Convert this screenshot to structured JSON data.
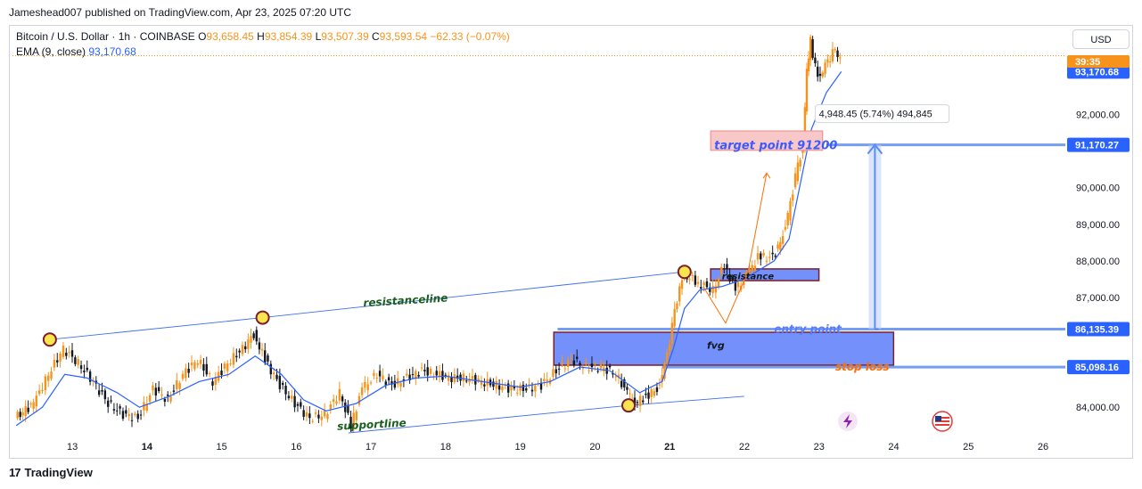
{
  "header": {
    "publisher": "Jameshead007 published on TradingView.com, Apr 23, 2025 07:20 UTC"
  },
  "legend": {
    "symbol": "Bitcoin / U.S. Dollar · 1h · COINBASE",
    "o_label": "O",
    "o": "93,658.45",
    "h_label": "H",
    "h": "93,854.39",
    "l_label": "L",
    "l": "93,507.39",
    "c_label": "C",
    "c": "93,593.54",
    "change": "−62.33 (−0.07%)",
    "ema_label": "EMA (9, close)",
    "ema_value": "93,170.68"
  },
  "currency_button": "USD",
  "footer": {
    "brand": "TradingView",
    "logo": "17"
  },
  "colors": {
    "candle": "#f7931a",
    "candle_alt": "#131722",
    "ema": "#2962ff",
    "price_tag": "#2962ff",
    "last_tag": "#f7931a",
    "box": "#5b7cfa",
    "box_border": "#7b1f2a",
    "target_fill": "#f8c8c8",
    "target_text": "#3d5afe",
    "annotation_orange": "#ff6d00",
    "annotation_green": "#1b5e20"
  },
  "icons": [
    "bolt-icon",
    "us-flag-icon",
    "tradingview-logo-icon"
  ],
  "chart_data": {
    "type": "candlestick",
    "title": "Bitcoin / U.S. Dollar · 1h · COINBASE",
    "x_ticks": [
      "13",
      "14",
      "15",
      "16",
      "17",
      "18",
      "19",
      "20",
      "21",
      "22",
      "23",
      "24",
      "25",
      "26"
    ],
    "y_ticks": [
      {
        "value": 84000,
        "label": "84,000.00"
      },
      {
        "value": 87000,
        "label": "87,000.00"
      },
      {
        "value": 88000,
        "label": "88,000.00"
      },
      {
        "value": 89000,
        "label": "89,000.00"
      },
      {
        "value": 90000,
        "label": "90,000.00"
      },
      {
        "value": 92000,
        "label": "92,000.00"
      }
    ],
    "ylim": [
      83300,
      94300
    ],
    "xlim": [
      12.2,
      26.3
    ],
    "price_tags": [
      {
        "value": 93170.68,
        "label": "93,170.68",
        "kind": "ema"
      },
      {
        "value": 91170.27,
        "label": "91,170.27",
        "kind": "level"
      },
      {
        "value": 86135.39,
        "label": "86,135.39",
        "kind": "level"
      },
      {
        "value": 85098.16,
        "label": "85,098.16",
        "kind": "level"
      }
    ],
    "last_price_countdown": "39:35",
    "price_path": [
      [
        12.25,
        83700
      ],
      [
        12.5,
        84100
      ],
      [
        12.7,
        84900
      ],
      [
        12.9,
        85600
      ],
      [
        13.1,
        85200
      ],
      [
        13.3,
        84700
      ],
      [
        13.5,
        84100
      ],
      [
        13.7,
        83800
      ],
      [
        13.9,
        83700
      ],
      [
        14.1,
        84500
      ],
      [
        14.3,
        84200
      ],
      [
        14.5,
        84900
      ],
      [
        14.7,
        85300
      ],
      [
        14.9,
        84700
      ],
      [
        15.1,
        85200
      ],
      [
        15.3,
        85600
      ],
      [
        15.45,
        86000
      ],
      [
        15.6,
        85300
      ],
      [
        15.8,
        84600
      ],
      [
        16.0,
        84100
      ],
      [
        16.2,
        83700
      ],
      [
        16.4,
        83800
      ],
      [
        16.6,
        84400
      ],
      [
        16.75,
        83500
      ],
      [
        16.9,
        84500
      ],
      [
        17.1,
        84900
      ],
      [
        17.3,
        84600
      ],
      [
        17.5,
        84800
      ],
      [
        17.7,
        85000
      ],
      [
        17.9,
        84900
      ],
      [
        18.1,
        84800
      ],
      [
        18.3,
        84800
      ],
      [
        18.5,
        84700
      ],
      [
        18.7,
        84600
      ],
      [
        18.9,
        84500
      ],
      [
        19.1,
        84500
      ],
      [
        19.3,
        84600
      ],
      [
        19.5,
        85000
      ],
      [
        19.7,
        85300
      ],
      [
        19.9,
        85100
      ],
      [
        20.1,
        85100
      ],
      [
        20.3,
        84900
      ],
      [
        20.45,
        84400
      ],
      [
        20.55,
        84100
      ],
      [
        20.7,
        84300
      ],
      [
        20.85,
        84500
      ],
      [
        20.95,
        85100
      ],
      [
        21.05,
        86200
      ],
      [
        21.15,
        87300
      ],
      [
        21.25,
        87600
      ],
      [
        21.4,
        87400
      ],
      [
        21.6,
        87200
      ],
      [
        21.75,
        87900
      ],
      [
        21.9,
        87200
      ],
      [
        22.05,
        87600
      ],
      [
        22.2,
        88100
      ],
      [
        22.4,
        88100
      ],
      [
        22.5,
        88500
      ],
      [
        22.6,
        89200
      ],
      [
        22.7,
        90300
      ],
      [
        22.8,
        91100
      ],
      [
        22.85,
        93200
      ],
      [
        22.9,
        94000
      ],
      [
        23.0,
        93000
      ],
      [
        23.1,
        93300
      ],
      [
        23.2,
        93700
      ],
      [
        23.3,
        93594
      ]
    ],
    "ema_path": [
      [
        12.25,
        83500
      ],
      [
        12.6,
        84000
      ],
      [
        12.9,
        84900
      ],
      [
        13.2,
        84800
      ],
      [
        13.6,
        84400
      ],
      [
        13.9,
        84000
      ],
      [
        14.3,
        84300
      ],
      [
        14.7,
        84700
      ],
      [
        15.1,
        84900
      ],
      [
        15.45,
        85400
      ],
      [
        15.8,
        84900
      ],
      [
        16.1,
        84200
      ],
      [
        16.4,
        83900
      ],
      [
        16.8,
        84100
      ],
      [
        17.2,
        84600
      ],
      [
        17.6,
        84800
      ],
      [
        18.0,
        84850
      ],
      [
        18.5,
        84700
      ],
      [
        19.0,
        84550
      ],
      [
        19.4,
        84700
      ],
      [
        19.8,
        85100
      ],
      [
        20.2,
        85000
      ],
      [
        20.6,
        84400
      ],
      [
        20.9,
        84700
      ],
      [
        21.05,
        85600
      ],
      [
        21.2,
        86700
      ],
      [
        21.4,
        87200
      ],
      [
        21.7,
        87300
      ],
      [
        22.0,
        87500
      ],
      [
        22.4,
        88000
      ],
      [
        22.6,
        88600
      ],
      [
        22.75,
        90100
      ],
      [
        22.9,
        91600
      ],
      [
        23.1,
        92600
      ],
      [
        23.3,
        93171
      ]
    ],
    "annotations": {
      "resistance_line_label": "resistanceline",
      "support_line_label": "supportline",
      "resistance_box_label": "resistance",
      "fvg_label": "fvg",
      "entry_label": "entry point",
      "stop_label": "stop loss",
      "target_label": "target point 91200",
      "measure_label": "4,948.45 (5.74%) 494,845",
      "resistance_line": [
        [
          12.7,
          85850
        ],
        [
          15.55,
          86450
        ],
        [
          21.2,
          87700
        ]
      ],
      "support_line": [
        [
          16.7,
          83300
        ],
        [
          20.45,
          84050
        ],
        [
          22.0,
          84300
        ]
      ],
      "resistance_box": {
        "x0": 21.55,
        "x1": 23.0,
        "y0": 87460,
        "y1": 87780
      },
      "fvg_box": {
        "x0": 19.45,
        "x1": 24.0,
        "y0": 85150,
        "y1": 86050
      },
      "entry_price": 86135.39,
      "stop_price": 85098.16,
      "target_price": 91170.27,
      "circles": [
        [
          12.7,
          85850
        ],
        [
          15.55,
          86450
        ],
        [
          20.45,
          84050
        ],
        [
          21.2,
          87700
        ]
      ]
    }
  }
}
